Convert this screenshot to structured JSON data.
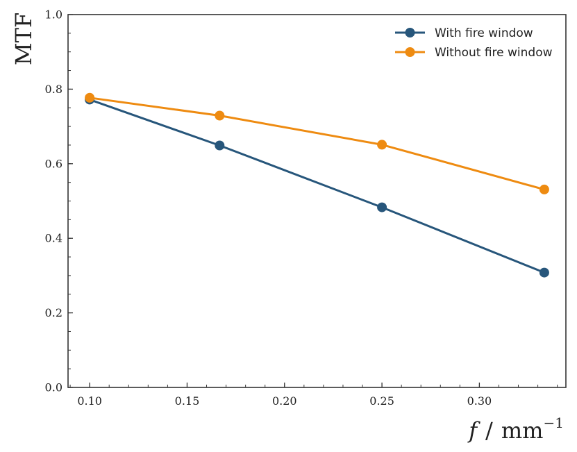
{
  "chart_data": {
    "type": "line",
    "title": "",
    "xlabel": "f / mm⁻¹",
    "xlabel_parts": {
      "var": "f",
      "sep": "/",
      "unit": "mm",
      "exp": "−1"
    },
    "ylabel": "MTF",
    "xlim": [
      0.0889,
      0.3444
    ],
    "ylim": [
      0.0,
      1.0
    ],
    "x_ticks": [
      0.1,
      0.15,
      0.2,
      0.25,
      0.3
    ],
    "x_tick_labels": [
      "0.10",
      "0.15",
      "0.20",
      "0.25",
      "0.30"
    ],
    "y_ticks": [
      0.0,
      0.2,
      0.4,
      0.6,
      0.8,
      1.0
    ],
    "y_tick_labels": [
      "0.0",
      "0.2",
      "0.4",
      "0.6",
      "0.8",
      "1.0"
    ],
    "x": [
      0.1,
      0.1667,
      0.25,
      0.3333
    ],
    "series": [
      {
        "name": "With fire window",
        "color": "#27567b",
        "values": [
          0.772,
          0.649,
          0.483,
          0.308
        ]
      },
      {
        "name": "Without fire window",
        "color": "#ee8b11",
        "values": [
          0.777,
          0.729,
          0.651,
          0.531
        ]
      }
    ],
    "legend_position": "top-right",
    "grid": false
  }
}
